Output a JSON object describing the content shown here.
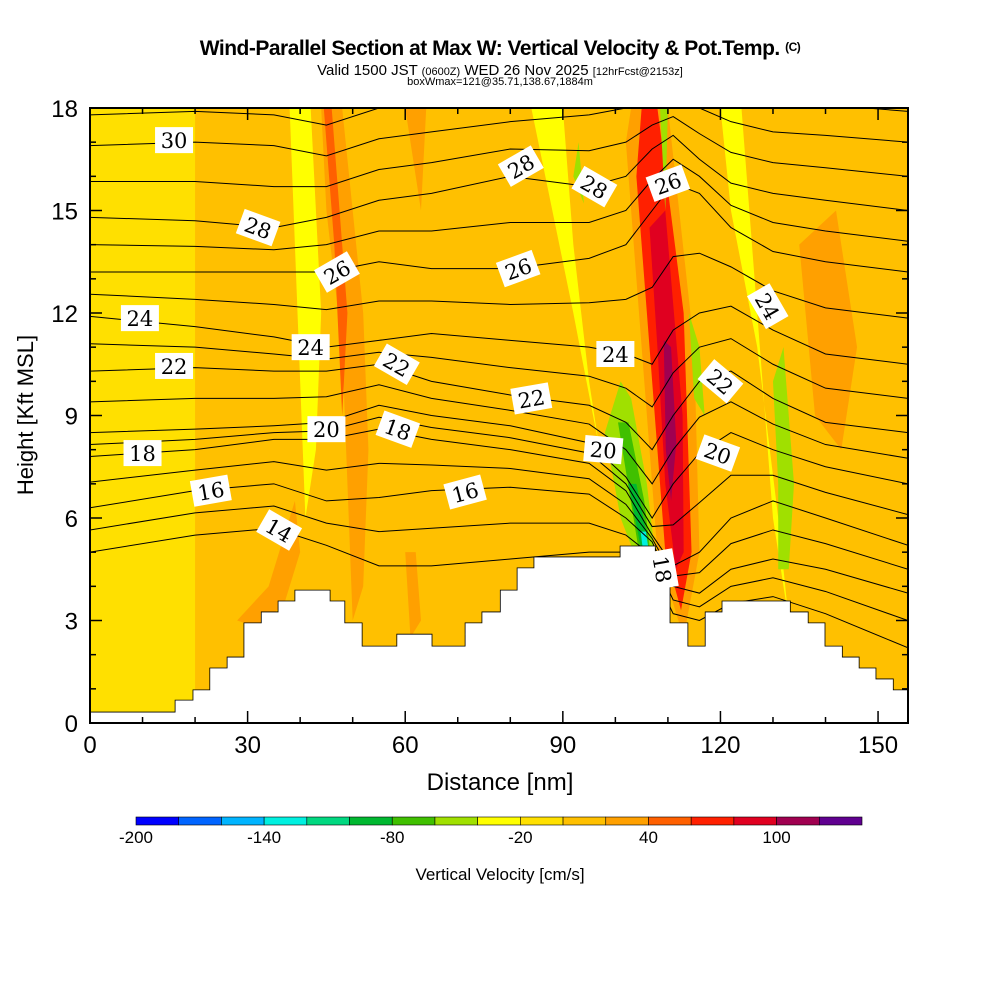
{
  "title": "Wind-Parallel Section at Max W: Vertical Velocity & Pot.Temp.",
  "title_mark": "(C)",
  "subtitle_valid": "Valid 1500 JST",
  "subtitle_utc": "(0600Z)",
  "subtitle_date": "WED 26 Nov 2025",
  "subtitle_fcst": "[12hrFcst@2153z]",
  "subtitle_box": "boxWmax=121@35.71,138.67,1884m",
  "chart_data": {
    "type": "contour",
    "xlabel": "Distance [nm]",
    "ylabel": "Height [Kft MSL]",
    "xlim": [
      0,
      155.7
    ],
    "ylim": [
      0,
      18
    ],
    "xticks": [
      0,
      30,
      60,
      90,
      120,
      150
    ],
    "yticks": [
      0,
      3,
      6,
      9,
      12,
      15,
      18
    ],
    "colorbar": {
      "label": "Vertical Velocity [cm/s]",
      "boundaries": [
        -200,
        -180,
        -160,
        -140,
        -120,
        -100,
        -80,
        -60,
        -40,
        -20,
        0,
        20,
        40,
        60,
        80,
        100,
        120,
        140
      ],
      "tick_labels": [
        "-200",
        "-140",
        "-80",
        "-20",
        "40",
        "100"
      ],
      "tick_values": [
        -200,
        -140,
        -80,
        -20,
        40,
        100
      ],
      "colors": [
        "#0000ff",
        "#0064ff",
        "#00b4ff",
        "#00f0e0",
        "#00d880",
        "#00b830",
        "#40c000",
        "#a0e000",
        "#ffff00",
        "#ffe000",
        "#ffc000",
        "#ffa000",
        "#ff6000",
        "#ff2000",
        "#e00020",
        "#a00050",
        "#600090"
      ]
    },
    "background_w": 5,
    "w_features": [
      {
        "value": -10,
        "points": [
          [
            0,
            18
          ],
          [
            20,
            18
          ],
          [
            20,
            0
          ],
          [
            0,
            0
          ]
        ]
      },
      {
        "value": -30,
        "points": [
          [
            38,
            18
          ],
          [
            42,
            18
          ],
          [
            44,
            12
          ],
          [
            43,
            8
          ],
          [
            41,
            6
          ],
          [
            40,
            10
          ],
          [
            39,
            14
          ]
        ]
      },
      {
        "value": -30,
        "points": [
          [
            84,
            18
          ],
          [
            90,
            18
          ],
          [
            92,
            14
          ],
          [
            95,
            10
          ],
          [
            98,
            7
          ],
          [
            100,
            5
          ],
          [
            97,
            8
          ],
          [
            92,
            12
          ],
          [
            88,
            15
          ]
        ]
      },
      {
        "value": -30,
        "points": [
          [
            120,
            18
          ],
          [
            124,
            18
          ],
          [
            126,
            14
          ],
          [
            128,
            10
          ],
          [
            130,
            6
          ],
          [
            133,
            3
          ],
          [
            131,
            6
          ],
          [
            127,
            11
          ],
          [
            122,
            15
          ]
        ]
      },
      {
        "value": 30,
        "points": [
          [
            44,
            18
          ],
          [
            48,
            18
          ],
          [
            52,
            12
          ],
          [
            53,
            8
          ],
          [
            52,
            4
          ],
          [
            50,
            3
          ],
          [
            49,
            7
          ],
          [
            48,
            11
          ],
          [
            45,
            15
          ]
        ]
      },
      {
        "value": 30,
        "points": [
          [
            28,
            3
          ],
          [
            34,
            4
          ],
          [
            39,
            6.5
          ],
          [
            40,
            5
          ],
          [
            37,
            3.5
          ],
          [
            32,
            2.8
          ]
        ]
      },
      {
        "value": 30,
        "points": [
          [
            60,
            5
          ],
          [
            62,
            5
          ],
          [
            63,
            3
          ],
          [
            61,
            2.5
          ]
        ]
      },
      {
        "value": 30,
        "points": [
          [
            60,
            18
          ],
          [
            64,
            18
          ],
          [
            63,
            15
          ]
        ]
      },
      {
        "value": 30,
        "points": [
          [
            135,
            14
          ],
          [
            142,
            15
          ],
          [
            146,
            11
          ],
          [
            143,
            8
          ],
          [
            138,
            9
          ]
        ]
      },
      {
        "value": 30,
        "points": [
          [
            103,
            18
          ],
          [
            110,
            18
          ],
          [
            115,
            11
          ],
          [
            116,
            5
          ],
          [
            113,
            2.5
          ],
          [
            108,
            5
          ],
          [
            105,
            11
          ],
          [
            102,
            17
          ]
        ]
      },
      {
        "value": 50,
        "points": [
          [
            44.5,
            18
          ],
          [
            46,
            18
          ],
          [
            49,
            12
          ],
          [
            48,
            9
          ],
          [
            46.5,
            14
          ]
        ]
      },
      {
        "value": 70,
        "points": [
          [
            105,
            18
          ],
          [
            108,
            18
          ],
          [
            113,
            12
          ],
          [
            114.5,
            5
          ],
          [
            112.5,
            3.3
          ],
          [
            109.5,
            5
          ],
          [
            107,
            10
          ],
          [
            104,
            16
          ]
        ]
      },
      {
        "value": 90,
        "points": [
          [
            106.5,
            14.5
          ],
          [
            109.5,
            15
          ],
          [
            112.8,
            9
          ],
          [
            113,
            5
          ],
          [
            111.5,
            4.5
          ],
          [
            109.5,
            7
          ],
          [
            108,
            11
          ]
        ]
      },
      {
        "value": 110,
        "points": [
          [
            109.2,
            11.2
          ],
          [
            110.6,
            11
          ],
          [
            111.6,
            8.2
          ],
          [
            110.6,
            6.5
          ],
          [
            109.6,
            8
          ]
        ]
      },
      {
        "value": -50,
        "points": [
          [
            98,
            8.5
          ],
          [
            101,
            10
          ],
          [
            103,
            9.5
          ],
          [
            106,
            7
          ],
          [
            107.5,
            5
          ],
          [
            104,
            4.8
          ],
          [
            101,
            6
          ]
        ]
      },
      {
        "value": -70,
        "points": [
          [
            100.5,
            8.8
          ],
          [
            102.5,
            8.8
          ],
          [
            105.5,
            6.5
          ],
          [
            106.5,
            5.2
          ],
          [
            104.5,
            5
          ]
        ]
      },
      {
        "value": -90,
        "points": [
          [
            102.5,
            7
          ],
          [
            104,
            7
          ],
          [
            106,
            5.5
          ],
          [
            105,
            5
          ]
        ]
      },
      {
        "value": -130,
        "points": [
          [
            104.8,
            5.6
          ],
          [
            105.8,
            5.6
          ],
          [
            106.4,
            5
          ],
          [
            105.3,
            5
          ]
        ]
      },
      {
        "value": -50,
        "points": [
          [
            108.5,
            18
          ],
          [
            110,
            18
          ],
          [
            109.5,
            15
          ]
        ]
      },
      {
        "value": -50,
        "points": [
          [
            114,
            12
          ],
          [
            116,
            11
          ],
          [
            117,
            9
          ],
          [
            115,
            9.5
          ]
        ]
      },
      {
        "value": -50,
        "points": [
          [
            130,
            10
          ],
          [
            132,
            11
          ],
          [
            134,
            7
          ],
          [
            133,
            4.5
          ],
          [
            131,
            4.5
          ],
          [
            131,
            7
          ]
        ]
      },
      {
        "value": -50,
        "points": [
          [
            92,
            16
          ],
          [
            93,
            17
          ],
          [
            94,
            15.2
          ]
        ]
      }
    ],
    "terrain_steps": [
      [
        0,
        0.32
      ],
      [
        16.2,
        0.67
      ],
      [
        19.6,
        0.97
      ],
      [
        22.8,
        1.61
      ],
      [
        26.1,
        1.93
      ],
      [
        29.3,
        2.93
      ],
      [
        32.6,
        3.25
      ],
      [
        35.8,
        3.57
      ],
      [
        39.0,
        3.89
      ],
      [
        45.7,
        3.57
      ],
      [
        48.5,
        2.93
      ],
      [
        51.8,
        2.25
      ],
      [
        58.4,
        2.6
      ],
      [
        65.1,
        2.25
      ],
      [
        71.4,
        2.93
      ],
      [
        74.6,
        3.25
      ],
      [
        78.1,
        3.89
      ],
      [
        81.3,
        4.54
      ],
      [
        84.5,
        4.86
      ],
      [
        100.9,
        5.18
      ],
      [
        107.6,
        4.77
      ],
      [
        110.4,
        2.93
      ],
      [
        113.8,
        2.25
      ],
      [
        117.1,
        3.25
      ],
      [
        120.3,
        3.57
      ],
      [
        133.3,
        3.25
      ],
      [
        136.7,
        2.93
      ],
      [
        139.9,
        2.25
      ],
      [
        143.2,
        1.93
      ],
      [
        146.4,
        1.61
      ],
      [
        149.6,
        1.29
      ],
      [
        152.9,
        0.97
      ],
      [
        155.7,
        0.97
      ]
    ],
    "theta_x": [
      0,
      20,
      35,
      45,
      55,
      65,
      80,
      95,
      102,
      107,
      111,
      116,
      122,
      130,
      140,
      155.7
    ],
    "theta_lines": [
      {
        "level": 14,
        "h": [
          5.0,
          5.5,
          5.7,
          5.2,
          4.6,
          4.6,
          4.8,
          5.0,
          5.0,
          4.5,
          3.2,
          3.0,
          3.5,
          3.7,
          3.2,
          2.2
        ]
      },
      {
        "level": 16,
        "h": [
          6.3,
          6.8,
          7.0,
          6.5,
          6.6,
          6.8,
          6.9,
          6.7,
          6.0,
          5.3,
          4.0,
          3.8,
          4.5,
          4.8,
          4.5,
          3.8
        ]
      },
      {
        "level": 18,
        "h": [
          7.8,
          8.0,
          8.3,
          8.3,
          8.6,
          8.3,
          8.0,
          7.6,
          6.8,
          5.5,
          4.6,
          5.0,
          6.0,
          6.5,
          6.0,
          5.2
        ]
      },
      {
        "level": 20,
        "h": [
          8.5,
          8.6,
          8.7,
          8.8,
          9.3,
          9.0,
          8.7,
          8.2,
          7.2,
          6.0,
          7.0,
          7.9,
          8.5,
          8.0,
          7.5,
          7.0
        ]
      },
      {
        "level": 22,
        "h": [
          10.3,
          10.4,
          10.3,
          10.3,
          10.5,
          10.0,
          9.6,
          9.3,
          8.8,
          8.0,
          9.0,
          10.0,
          10.3,
          9.5,
          8.8,
          8.5
        ]
      },
      {
        "level": 24,
        "h": [
          11.9,
          11.6,
          11.3,
          11.0,
          11.2,
          11.4,
          11.2,
          11.0,
          10.8,
          10.5,
          11.5,
          12.0,
          12.2,
          11.5,
          10.8,
          10.5
        ]
      },
      {
        "level": 26,
        "h": [
          13.2,
          13.2,
          13.2,
          13.2,
          13.5,
          13.3,
          13.3,
          13.6,
          14.0,
          15.0,
          15.8,
          15.5,
          14.5,
          13.8,
          13.5,
          13.2
        ]
      },
      {
        "level": 28,
        "h": [
          14.8,
          14.7,
          14.5,
          14.8,
          15.3,
          15.5,
          16.0,
          15.7,
          16.0,
          16.8,
          17.2,
          16.5,
          15.8,
          15.5,
          15.3,
          15.0
        ]
      },
      {
        "level": 30,
        "h": [
          16.9,
          17.0,
          16.9,
          16.6,
          17.1,
          17.3,
          17.6,
          17.8,
          18.0,
          18.2,
          18.3,
          18.0,
          17.6,
          17.3,
          17.2,
          17.0
        ]
      }
    ],
    "contour_labels": [
      {
        "text": "30",
        "x": 16,
        "h": 17.06
      },
      {
        "text": "28",
        "x": 32,
        "h": 14.5
      },
      {
        "text": "28",
        "x": 82,
        "h": 16.3
      },
      {
        "text": "28",
        "x": 96,
        "h": 15.7
      },
      {
        "text": "26",
        "x": 47,
        "h": 13.2
      },
      {
        "text": "26",
        "x": 81.5,
        "h": 13.3
      },
      {
        "text": "26",
        "x": 110,
        "h": 15.8
      },
      {
        "text": "24",
        "x": 9.5,
        "h": 11.85
      },
      {
        "text": "24",
        "x": 42,
        "h": 11.0
      },
      {
        "text": "24",
        "x": 100,
        "h": 10.8
      },
      {
        "text": "24",
        "x": 129,
        "h": 12.2
      },
      {
        "text": "22",
        "x": 16,
        "h": 10.45
      },
      {
        "text": "22",
        "x": 58.4,
        "h": 10.5
      },
      {
        "text": "22",
        "x": 84,
        "h": 9.5
      },
      {
        "text": "22",
        "x": 120,
        "h": 10.0
      },
      {
        "text": "20",
        "x": 45,
        "h": 8.6
      },
      {
        "text": "20",
        "x": 97.7,
        "h": 8.0
      },
      {
        "text": "20",
        "x": 119.5,
        "h": 7.9
      },
      {
        "text": "18",
        "x": 10,
        "h": 7.9
      },
      {
        "text": "18",
        "x": 58.6,
        "h": 8.6
      },
      {
        "text": "18",
        "x": 109,
        "h": 4.5
      },
      {
        "text": "16",
        "x": 23,
        "h": 6.8
      },
      {
        "text": "16",
        "x": 71.4,
        "h": 6.76
      },
      {
        "text": "14",
        "x": 36,
        "h": 5.65
      }
    ]
  }
}
